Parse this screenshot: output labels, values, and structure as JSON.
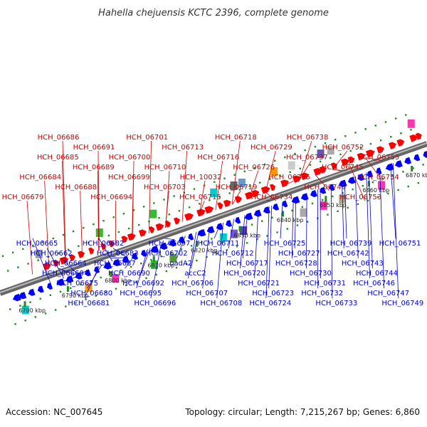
{
  "title": "Hahella chejuensis KCTC 2396, complete genome",
  "footer": {
    "accession": "Accession: NC_007645",
    "topology": "Topology: circular; Length: 7,215,267 bp; Genes: 6,860"
  },
  "colors": {
    "forward_label": "#cc0000",
    "reverse_label": "#0000cc",
    "forward_gene": "#ff0000",
    "reverse_gene": "#0000ff",
    "backbone": "#888888",
    "tick": "#228822"
  },
  "scale_ticks": [
    "6780 kbp",
    "6790 kbp",
    "6800 kbp",
    "6810 kbp",
    "6820 kbp",
    "6830 kbp",
    "6840 kbp",
    "6850 kbp",
    "6860 kbp",
    "6870 kbp"
  ],
  "forward_labels": [
    "HCH_06679",
    "HCH_06684",
    "HCH_06685",
    "HCH_06686",
    "HCH_06688",
    "HCH_06689",
    "HCH_06691",
    "HCH_06694",
    "HCH_06699",
    "HCH_06700",
    "HCH_06701",
    "HCH_06703",
    "HCH_06710",
    "HCH_06713",
    "HCH_06715",
    "HCH_10032",
    "HCH_06716",
    "HCH_06718",
    "HCH_06719",
    "HCH_06726",
    "HCH_06729",
    "HCH_06734",
    "HCH_06735",
    "HCH_06737",
    "HCH_06738",
    "HCH_06740",
    "HCH_06745",
    "HCH_06752",
    "HCH_06753",
    "HCH_06754",
    "HCH_06755"
  ],
  "reverse_labels": [
    "HCH_06665",
    "HCH_06662",
    "HCH_06664",
    "HCH_06668",
    "HCH_06675",
    "HCH_06680",
    "HCH_06681",
    "HCH_06682",
    "HCH_06683",
    "HCH_06687",
    "HCH_06690",
    "HCH_06692",
    "HCH_06695",
    "HCH_06696",
    "HCH_06697",
    "HCH_06702",
    "oadA2",
    "accC2",
    "HCH_06706",
    "HCH_06707",
    "HCH_06708",
    "HCH_06711",
    "HCH_06712",
    "HCH_06717",
    "HCH_06720",
    "HCH_06721",
    "HCH_06723",
    "HCH_06724",
    "HCH_06725",
    "HCH_06727",
    "HCH_06728",
    "HCH_06730",
    "HCH_06731",
    "HCH_06732",
    "HCH_06733",
    "HCH_06739",
    "HCH_06742",
    "HCH_06743",
    "HCH_06744",
    "HCH_06746",
    "HCH_06747",
    "HCH_06749",
    "HCH_06751"
  ]
}
